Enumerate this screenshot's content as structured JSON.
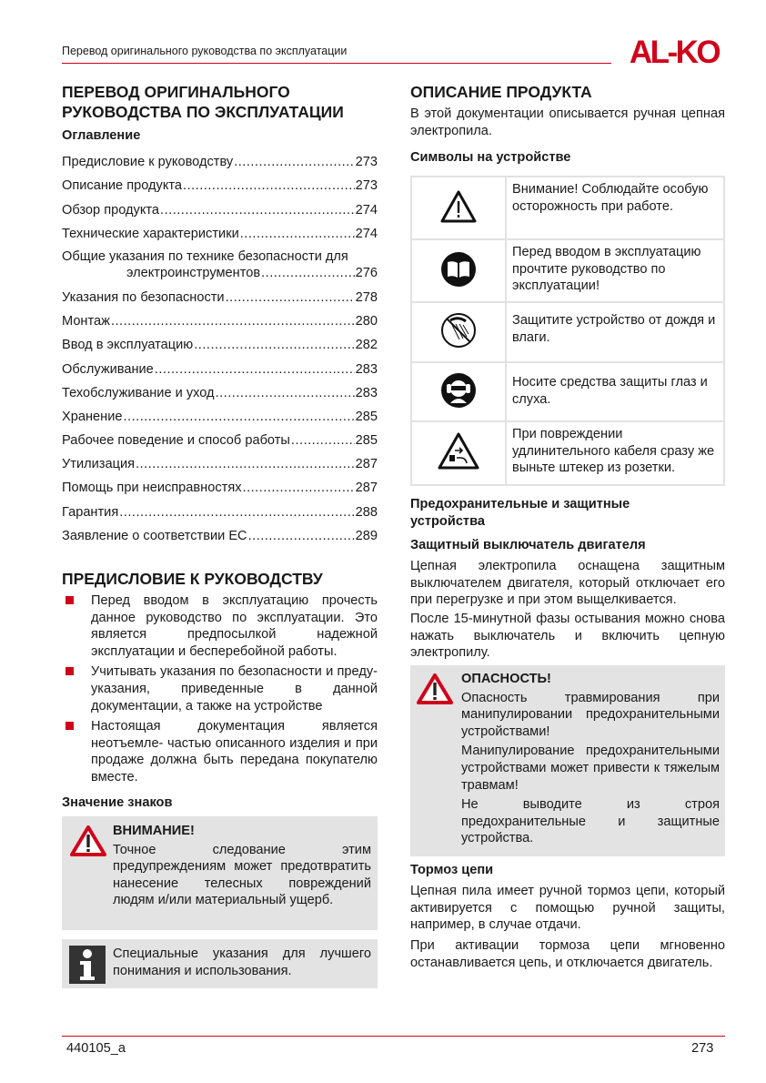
{
  "header": {
    "title": "Перевод оригинального руководства по эксплуатации",
    "logo_text": "AL-KO",
    "brand_color": "#d0021b"
  },
  "left": {
    "main_title": "ПЕРЕВОД ОРИГИНАЛЬНОГО РУКОВОДСТВА ПО ЭКСПЛУАТАЦИИ",
    "toc_title": "Оглавление",
    "toc": [
      {
        "label": "Предисловие к руководству",
        "page": "273"
      },
      {
        "label": "Описание продукта",
        "page": "273"
      },
      {
        "label": "Обзор продукта",
        "page": "274"
      },
      {
        "label": "Технические характеристики",
        "page": "274"
      },
      {
        "label": "Общие указания по технике безопасности для",
        "label2": "электроинструментов",
        "page": "276"
      },
      {
        "label": "Указания по безопасности",
        "page": "278"
      },
      {
        "label": "Монтаж",
        "page": "280"
      },
      {
        "label": "Ввод в эксплуатацию",
        "page": "282"
      },
      {
        "label": "Обслуживание",
        "page": "283"
      },
      {
        "label": "Техобслуживание и уход",
        "page": "283"
      },
      {
        "label": "Хранение",
        "page": "285"
      },
      {
        "label": "Рабочее поведение и способ работы",
        "page": "285"
      },
      {
        "label": "Утилизация",
        "page": "287"
      },
      {
        "label": "Помощь при неисправностях",
        "page": "287"
      },
      {
        "label": "Гарантия",
        "page": "288"
      },
      {
        "label": "Заявление о соответствии ЕС",
        "page": "289"
      }
    ],
    "preface_title": "ПРЕДИСЛОВИЕ К РУКОВОДСТВУ",
    "preface_bullets": [
      "Перед вводом в эксплуатацию прочесть данное руководство по эксплуатации. Это является предпосылкой надежной эксплуатации и бесперебойной работы.",
      "Учитывать указания по безопасности и преду- указания, приведенные в данной документации, а также на устройстве",
      "Настоящая документация является неотъемле- частью описанного изделия и при продаже должна быть передана покупателю вместе."
    ],
    "signs_title": "Значение знаков",
    "warning": {
      "title": "ВНИМАНИЕ!",
      "text": "Точное следование этим предупреждениям может предотвратить нанесение телесных повреждений людям и/или материальный ущерб.",
      "icon": "warning-triangle-icon"
    },
    "info": {
      "text": "Специальные указания для лучшего понимания и использования.",
      "icon": "info-icon"
    }
  },
  "right": {
    "title": "ОПИСАНИЕ ПРОДУКТА",
    "intro": "В этой документации описывается ручная цепная электропила.",
    "symbols_title": "Символы на устройстве",
    "symbols": [
      {
        "icon": "caution-triangle-icon",
        "text": "Внимание! Соблюдайте особую осторожность при работе."
      },
      {
        "icon": "read-manual-icon",
        "text": "Перед вводом в эксплуатацию прочтите руководство по эксплуатации!"
      },
      {
        "icon": "no-rain-icon",
        "text": "Защитите устройство от дождя и влаги."
      },
      {
        "icon": "eye-ear-protection-icon",
        "text": "Носите средства защиты глаз и слуха."
      },
      {
        "icon": "unplug-cable-icon",
        "text": "При повреждении удлинительного кабеля сразу же выньте штекер из розетки."
      }
    ],
    "safety_title": "Предохранительные и защитные устройства",
    "motor_switch_title": "Защитный выключатель двигателя",
    "motor_switch_p1": "Цепная электропила оснащена защитным выключателем двигателя, который отключает его при перегрузке и при этом выщелкивается.",
    "motor_switch_p2": "После 15-минутной фазы остывания можно снова нажать выключатель и включить цепную электропилу.",
    "danger": {
      "title": "ОПАСНОСТЬ!",
      "p1": "Опасность травмирования при манипулировании предохранительными устройствами!",
      "p2": "Манипулирование предохранительными устройствами может привести к тяжелым травмам!",
      "p3": "Не выводите из строя предохранительные и защитные устройства."
    },
    "brake_title": "Тормоз цепи",
    "brake_p1": "Цепная пила имеет ручной тормоз цепи, который активируется с помощью ручной защиты, например, в случае отдачи.",
    "brake_p2": "При активации тормоза цепи мгновенно останавливается цепь, и отключается двигатель."
  },
  "footer": {
    "doc_id": "440105_a",
    "page": "273"
  }
}
